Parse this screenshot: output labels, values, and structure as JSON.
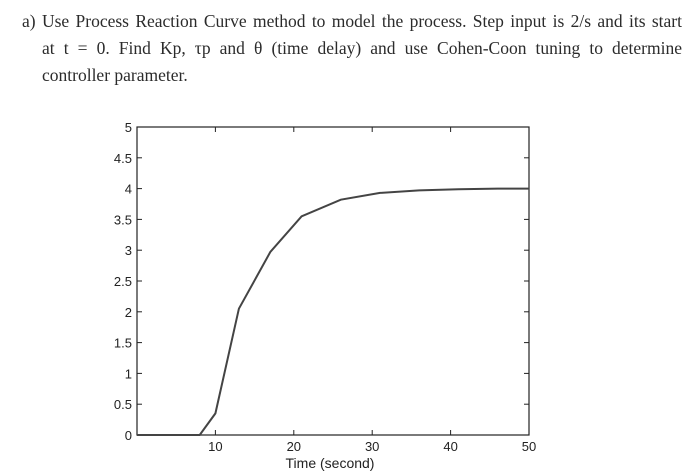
{
  "question": {
    "line1": "a)  Use Process Reaction Curve method to model the process. Step input is 2/s and its start",
    "line2": "at t = 0. Find Kp, τp and θ (time delay) and use Cohen-Coon tuning to determine",
    "line3": "controller parameter."
  },
  "chart_data": {
    "type": "line",
    "title": "",
    "xlabel": "Time (second)",
    "ylabel": "",
    "xlim": [
      0,
      50
    ],
    "ylim": [
      0,
      5
    ],
    "xticks": [
      10,
      20,
      30,
      40,
      50
    ],
    "yticks": [
      0,
      0.5,
      1,
      1.5,
      2,
      2.5,
      3,
      3.5,
      4,
      4.5,
      5
    ],
    "grid": false,
    "series": [
      {
        "x": [
          0,
          8,
          10,
          13,
          17,
          21,
          26,
          31,
          36,
          41,
          46,
          50
        ],
        "y": [
          0,
          0,
          0.35,
          2.05,
          2.97,
          3.55,
          3.82,
          3.93,
          3.97,
          3.99,
          4.0,
          4.0
        ],
        "color": "#444444"
      }
    ]
  }
}
